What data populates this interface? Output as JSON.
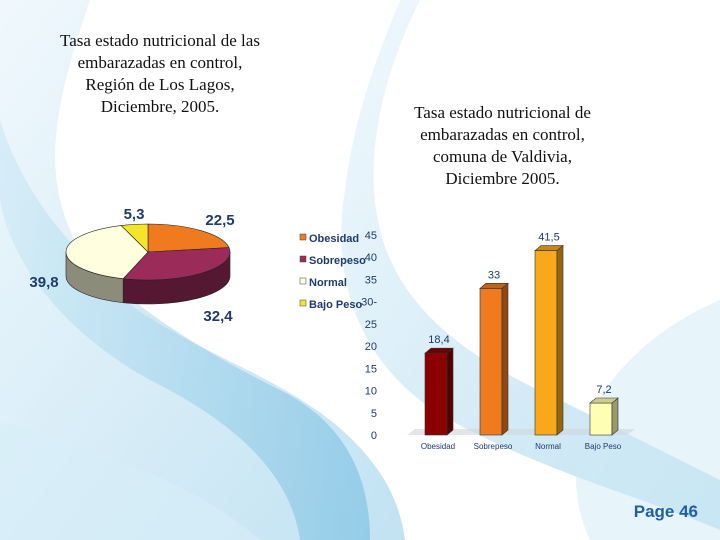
{
  "titles": {
    "left": "Tasa estado nutricional de las\nembarazadas en control,\nRegión de Los Lagos,\nDiciembre, 2005.",
    "right": "Tasa estado nutricional de\nembarazadas en control,\ncomuna de Valdivia,\nDiciembre 2005."
  },
  "page": {
    "label": "Page 46"
  },
  "chart_data": [
    {
      "type": "pie",
      "title": "Tasa estado nutricional de las embarazadas en control, Región de Los Lagos, Diciembre, 2005.",
      "categories": [
        "Obesidad",
        "Sobrepeso",
        "Normal",
        "Bajo Peso"
      ],
      "values": [
        22.5,
        32.4,
        39.8,
        5.3
      ],
      "value_labels": [
        "22,5",
        "32,4",
        "39,8",
        "5,3"
      ],
      "colors": [
        "#f07a1e",
        "#9b2c5a",
        "#ffffe0",
        "#f4e52a"
      ],
      "legend": "right",
      "style": "3d"
    },
    {
      "type": "bar",
      "title": "Tasa estado nutricional de embarazadas en control, comuna de Valdivia, Diciembre 2005.",
      "categories": [
        "Obesidad",
        "Sobrepeso",
        "Normal",
        "Bajo Peso"
      ],
      "values": [
        18.4,
        33,
        41.5,
        7.2
      ],
      "value_labels": [
        "18,4",
        "33",
        "41,5",
        "7,2"
      ],
      "colors": [
        "#8b0000",
        "#f07a1e",
        "#f9a81a",
        "#ffffb3"
      ],
      "ylim": [
        0,
        45
      ],
      "yticks": [
        "0",
        "5",
        "10",
        "15",
        "20",
        "25",
        "30-",
        "35",
        "40",
        "45"
      ],
      "style": "3d",
      "grid": false
    }
  ]
}
